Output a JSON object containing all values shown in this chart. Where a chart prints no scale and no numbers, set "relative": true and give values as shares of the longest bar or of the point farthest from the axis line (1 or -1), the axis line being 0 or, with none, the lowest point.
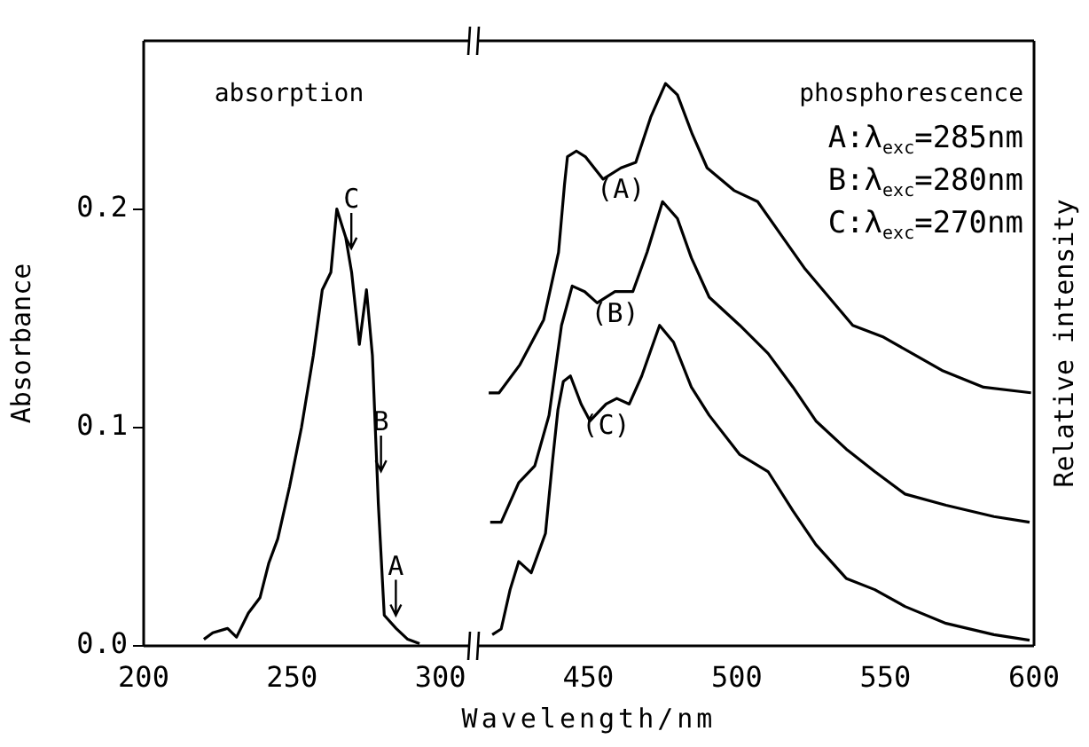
{
  "chart_data": [
    {
      "type": "line",
      "xlabel": "Wavelength/nm",
      "ylabel": "Absorbance",
      "xlim": [
        200,
        310
      ],
      "xticks": [
        200,
        250,
        300
      ],
      "ylim": [
        0,
        0.277
      ],
      "yticks": [
        {
          "value": 0,
          "label": "0.0"
        },
        0.1,
        0.2
      ],
      "series": [
        {
          "color": "#000000",
          "x": [
            220.3,
            223.3,
            228.3,
            231.3,
            235.3,
            239.2,
            242.2,
            245.2,
            249.2,
            253.2,
            257.2,
            260.2,
            263.1,
            265.1,
            268.1,
            270.1,
            272.7,
            275.1,
            277.1,
            279.1,
            281.1,
            285.1,
            289,
            293
          ],
          "values": [
            0.003,
            0.006,
            0.008,
            0.004,
            0.015,
            0.022,
            0.038,
            0.049,
            0.073,
            0.1,
            0.133,
            0.163,
            0.171,
            0.2,
            0.187,
            0.171,
            0.138,
            0.163,
            0.133,
            0.065,
            0.014,
            0.008,
            0.003,
            0.001
          ]
        }
      ],
      "annotations": [
        "absorption",
        {
          "text": "C",
          "x": 270,
          "y": 0.182
        },
        {
          "text": "B",
          "x": 280,
          "y": 0.08
        },
        {
          "text": "A",
          "x": 285,
          "y": 0.014
        }
      ]
    },
    {
      "type": "line",
      "relative": true,
      "y2label": "Relative intensity",
      "xlim": [
        412,
        600
      ],
      "xticks": [
        450,
        500,
        550,
        600
      ],
      "series": [
        {
          "name": "(A)",
          "color": "#000000",
          "x": [
            416.5,
            420,
            427,
            435,
            440,
            442,
            443,
            446,
            449,
            455,
            461,
            466,
            471,
            476,
            480,
            485,
            490,
            499,
            507,
            515,
            523,
            531,
            539,
            549,
            559,
            569,
            583,
            599
          ],
          "values": [
            0.45,
            0.45,
            0.5,
            0.58,
            0.7,
            0.82,
            0.87,
            0.88,
            0.87,
            0.83,
            0.85,
            0.86,
            0.94,
            1.0,
            0.98,
            0.91,
            0.85,
            0.81,
            0.79,
            0.73,
            0.67,
            0.62,
            0.57,
            0.55,
            0.52,
            0.49,
            0.46,
            0.45
          ]
        },
        {
          "name": "(B)",
          "color": "#000000",
          "x": [
            417,
            420.7,
            426.6,
            432,
            436.8,
            441,
            444.6,
            448.8,
            453,
            459,
            465,
            469.8,
            475,
            480,
            484.7,
            490.7,
            501,
            510.5,
            518.9,
            526.6,
            536.8,
            546.4,
            556.6,
            570.4,
            586.5,
            598.5
          ],
          "values": [
            0.22,
            0.22,
            0.29,
            0.32,
            0.41,
            0.57,
            0.64,
            0.63,
            0.61,
            0.63,
            0.63,
            0.7,
            0.79,
            0.76,
            0.69,
            0.62,
            0.57,
            0.52,
            0.46,
            0.4,
            0.35,
            0.31,
            0.27,
            0.25,
            0.23,
            0.22
          ]
        },
        {
          "name": "(C)",
          "color": "#000000",
          "x": [
            417.7,
            420.7,
            423.7,
            426.6,
            430.8,
            435.6,
            438,
            439.8,
            441.6,
            444,
            447.6,
            450.6,
            456,
            459.6,
            463.8,
            468,
            474,
            478.7,
            484.7,
            490.7,
            501,
            510.5,
            518.9,
            526.6,
            536.8,
            546.4,
            556.6,
            570.4,
            586.5,
            598.5
          ],
          "values": [
            0.02,
            0.03,
            0.1,
            0.15,
            0.13,
            0.2,
            0.33,
            0.42,
            0.47,
            0.48,
            0.43,
            0.4,
            0.43,
            0.44,
            0.43,
            0.48,
            0.57,
            0.54,
            0.46,
            0.41,
            0.34,
            0.31,
            0.24,
            0.18,
            0.12,
            0.1,
            0.07,
            0.04,
            0.02,
            0.01
          ]
        }
      ],
      "annotations": [
        "phosphorescence",
        "A:λ$_{exc}$=285nm",
        "B:λ$_{exc}$=280nm",
        "C:λ$_{exc}$=270nm"
      ]
    }
  ]
}
